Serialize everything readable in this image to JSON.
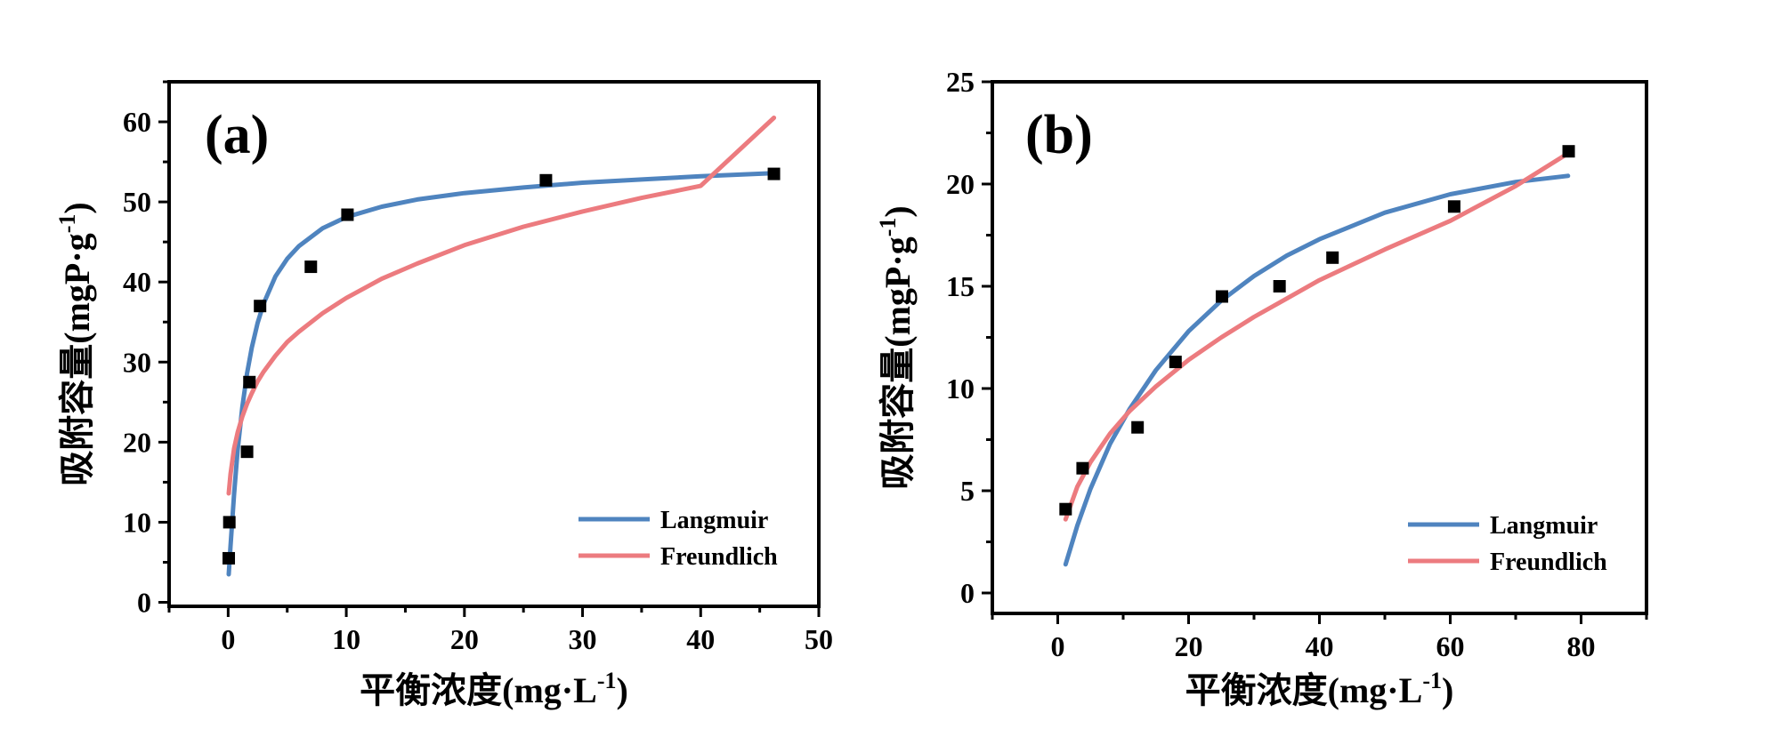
{
  "colors": {
    "langmuir": "#4f84bf",
    "freundlich": "#ec7b7f",
    "points": "#000000",
    "frame": "#000000"
  },
  "chart_data": [
    {
      "type": "scatter",
      "panel_label": "(a)",
      "xlabel": "平衡浓度(mg·L",
      "xlabel_sup": "-1",
      "xlabel_end": ")",
      "ylabel": "吸附容量(mgP·g",
      "ylabel_sup": "-1",
      "ylabel_end": ")",
      "xlim": [
        -5,
        50
      ],
      "ylim": [
        -0.5,
        65
      ],
      "xticks": [
        0,
        10,
        20,
        30,
        40,
        50
      ],
      "yticks": [
        0,
        10,
        20,
        30,
        40,
        50,
        60
      ],
      "xtick_labels": [
        "0",
        "10",
        "20",
        "30",
        "40",
        "50"
      ],
      "ytick_labels": [
        "0",
        "10",
        "20",
        "30",
        "40",
        "50",
        "60"
      ],
      "grid": false,
      "legend_position": "bottom-right",
      "legend": [
        {
          "name": "Langmuir",
          "color_key": "langmuir"
        },
        {
          "name": "Freundlich",
          "color_key": "freundlich"
        }
      ],
      "points": [
        {
          "x": 0.05,
          "y": 5.5
        },
        {
          "x": 0.1,
          "y": 10.0
        },
        {
          "x": 1.6,
          "y": 18.8
        },
        {
          "x": 1.8,
          "y": 27.5
        },
        {
          "x": 2.7,
          "y": 37.0
        },
        {
          "x": 7.0,
          "y": 41.9
        },
        {
          "x": 10.1,
          "y": 48.4
        },
        {
          "x": 26.9,
          "y": 52.7
        },
        {
          "x": 46.2,
          "y": 53.5
        }
      ],
      "fits": [
        {
          "name": "Langmuir",
          "color_key": "langmuir",
          "x": [
            0.05,
            0.2,
            0.5,
            0.8,
            1.2,
            1.6,
            2,
            2.5,
            3,
            4,
            5,
            6,
            8,
            10,
            13,
            16,
            20,
            25,
            30,
            35,
            40,
            46.2
          ],
          "y": [
            3.5,
            7.0,
            13.5,
            19.0,
            24.4,
            28.6,
            31.8,
            34.9,
            37.3,
            40.7,
            42.9,
            44.5,
            46.7,
            48.1,
            49.4,
            50.3,
            51.1,
            51.8,
            52.4,
            52.8,
            53.2,
            53.6
          ]
        },
        {
          "name": "Freundlich",
          "color_key": "freundlich",
          "x": [
            0.05,
            0.2,
            0.5,
            0.8,
            1.2,
            1.6,
            2,
            2.5,
            3,
            4,
            5,
            6,
            8,
            10,
            13,
            16,
            20,
            25,
            30,
            35,
            40,
            46.2
          ],
          "y": [
            13.6,
            16.0,
            19.2,
            21.2,
            23.2,
            24.8,
            26.1,
            27.6,
            28.8,
            30.8,
            32.5,
            33.8,
            36.1,
            38.0,
            40.4,
            42.3,
            44.6,
            46.9,
            48.8,
            50.5,
            52.0,
            60.5
          ]
        }
      ]
    },
    {
      "type": "scatter",
      "panel_label": "(b)",
      "xlabel": "平衡浓度(mg·L",
      "xlabel_sup": "-1",
      "xlabel_end": ")",
      "ylabel": "吸附容量(mgP·g",
      "ylabel_sup": "-1",
      "ylabel_end": ")",
      "xlim": [
        -10,
        90
      ],
      "ylim": [
        -1,
        25
      ],
      "xticks": [
        0,
        20,
        40,
        60,
        80
      ],
      "yticks": [
        0,
        5,
        10,
        15,
        20,
        25
      ],
      "xtick_labels": [
        "0",
        "20",
        "40",
        "60",
        "80"
      ],
      "ytick_labels": [
        "0",
        "5",
        "10",
        "15",
        "20",
        "25"
      ],
      "grid": false,
      "legend_position": "bottom-right",
      "legend": [
        {
          "name": "Langmuir",
          "color_key": "langmuir"
        },
        {
          "name": "Freundlich",
          "color_key": "freundlich"
        }
      ],
      "points": [
        {
          "x": 1.2,
          "y": 4.1
        },
        {
          "x": 3.8,
          "y": 6.1
        },
        {
          "x": 12.2,
          "y": 8.1
        },
        {
          "x": 18.0,
          "y": 11.3
        },
        {
          "x": 25.1,
          "y": 14.5
        },
        {
          "x": 33.9,
          "y": 15.0
        },
        {
          "x": 42.0,
          "y": 16.4
        },
        {
          "x": 60.6,
          "y": 18.9
        },
        {
          "x": 78.1,
          "y": 21.6
        }
      ],
      "fits": [
        {
          "name": "Langmuir",
          "color_key": "langmuir",
          "x": [
            1.2,
            3,
            5,
            8,
            11,
            15,
            20,
            25,
            30,
            35,
            40,
            50,
            60,
            70,
            78
          ],
          "y": [
            1.4,
            3.3,
            5.1,
            7.3,
            9.0,
            10.9,
            12.8,
            14.3,
            15.5,
            16.5,
            17.3,
            18.6,
            19.5,
            20.1,
            20.4
          ]
        },
        {
          "name": "Freundlich",
          "color_key": "freundlich",
          "x": [
            1.2,
            3,
            5,
            8,
            11,
            15,
            20,
            25,
            30,
            35,
            40,
            50,
            60,
            70,
            78
          ],
          "y": [
            3.6,
            5.2,
            6.4,
            7.8,
            8.9,
            10.1,
            11.4,
            12.5,
            13.5,
            14.4,
            15.3,
            16.8,
            18.2,
            19.9,
            21.5
          ]
        }
      ]
    }
  ]
}
